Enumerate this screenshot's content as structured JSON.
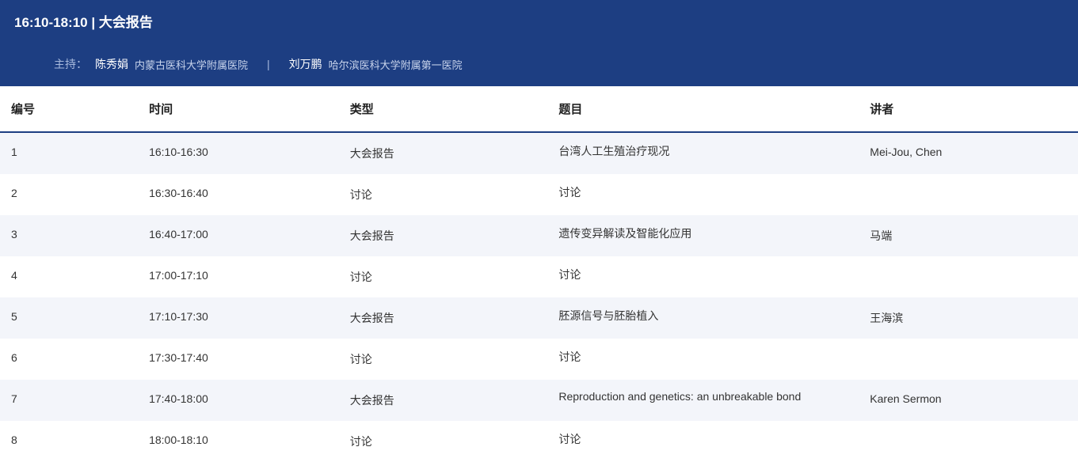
{
  "session": {
    "title": "16:10-18:10 | 大会报告",
    "moderators_label": "主持：",
    "moderators": [
      {
        "name": "陈秀娟",
        "affiliation": "内蒙古医科大学附属医院"
      },
      {
        "name": "刘万鹏",
        "affiliation": "哈尔滨医科大学附属第一医院"
      }
    ],
    "separator": "|"
  },
  "columns": {
    "num": "编号",
    "time": "时间",
    "type": "类型",
    "title": "题目",
    "speaker": "讲者"
  },
  "rows": [
    {
      "num": "1",
      "time": "16:10-16:30",
      "type": "大会报告",
      "title": "台湾人工生殖治疗现况",
      "speaker": "Mei-Jou, Chen"
    },
    {
      "num": "2",
      "time": "16:30-16:40",
      "type": "讨论",
      "title": "讨论",
      "speaker": ""
    },
    {
      "num": "3",
      "time": "16:40-17:00",
      "type": "大会报告",
      "title": "遗传变异解读及智能化应用",
      "speaker": "马端"
    },
    {
      "num": "4",
      "time": "17:00-17:10",
      "type": "讨论",
      "title": "讨论",
      "speaker": ""
    },
    {
      "num": "5",
      "time": "17:10-17:30",
      "type": "大会报告",
      "title": "胚源信号与胚胎植入",
      "speaker": "王海滨"
    },
    {
      "num": "6",
      "time": "17:30-17:40",
      "type": "讨论",
      "title": "讨论",
      "speaker": ""
    },
    {
      "num": "7",
      "time": "17:40-18:00",
      "type": "大会报告",
      "title": "Reproduction and genetics: an unbreakable bond",
      "speaker": "Karen Sermon"
    },
    {
      "num": "8",
      "time": "18:00-18:10",
      "type": "讨论",
      "title": "讨论",
      "speaker": ""
    }
  ],
  "style": {
    "header_bg": "#1d3e82",
    "header_text": "#ffffff",
    "mod_label_color": "#a7b9dd",
    "row_odd_bg": "#f3f5fa",
    "row_even_bg": "#ffffff",
    "border_color": "#1d3e82",
    "body_text": "#333333"
  }
}
